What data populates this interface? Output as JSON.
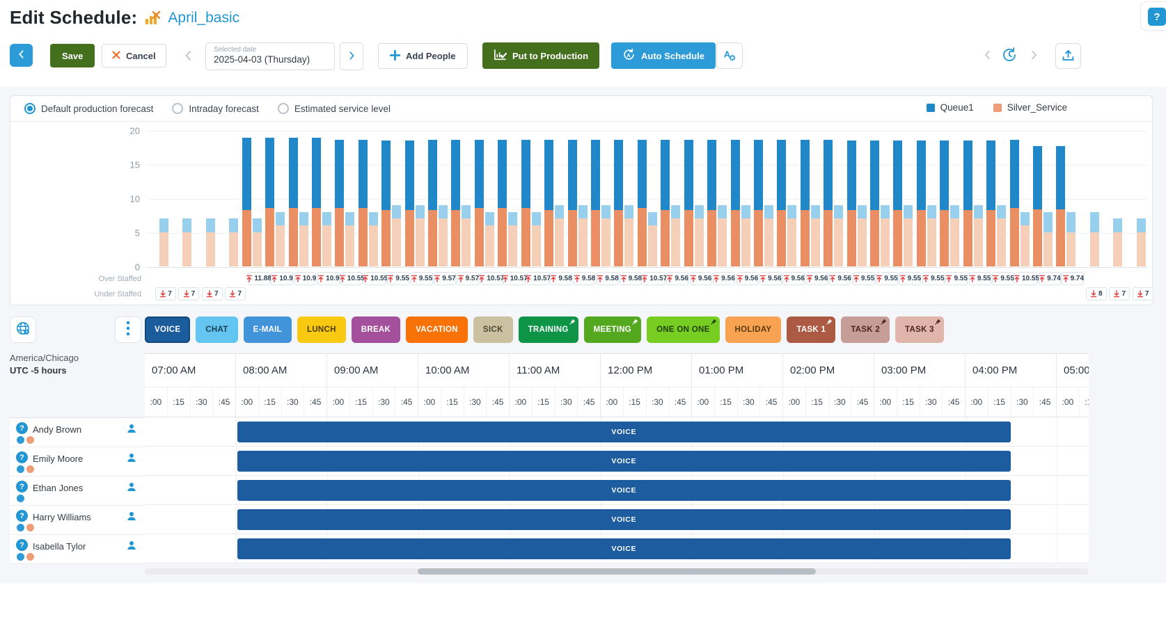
{
  "header": {
    "title": "Edit Schedule:",
    "schedule_name": "April_basic",
    "icons": [
      "schedule-chart-icon",
      "help-icon"
    ],
    "help_glyph": "?"
  },
  "toolbar": {
    "back_icon": "chevron-left-icon",
    "save": "Save",
    "cancel": "Cancel",
    "cancel_icon": "x-icon",
    "prev_date_icon": "chevron-left-icon",
    "selected_date_label": "Selected date",
    "selected_date": "2025-04-03 (Thursday)",
    "next_date_icon": "chevron-right-icon",
    "add_people": "Add People",
    "add_people_icon": "plus-icon",
    "put_to_production": "Put to Production",
    "put_to_production_icon": "chart-check-icon",
    "auto_schedule": "Auto Schedule",
    "auto_schedule_icon": "refresh-a-icon",
    "agent_settings_icon": "a-gear-icon",
    "history_prev_icon": "chevron-left-icon",
    "history_icon": "history-clock-icon",
    "history_next_icon": "chevron-right-icon",
    "export_icon": "upload-icon"
  },
  "forecast_options": [
    {
      "label": "Default production forecast",
      "selected": true
    },
    {
      "label": "Intraday forecast",
      "selected": false
    },
    {
      "label": "Estimated service level",
      "selected": false
    }
  ],
  "chart_data": {
    "type": "bar",
    "title": "Default production forecast",
    "ylim": [
      0,
      20
    ],
    "yticks": [
      0,
      5,
      10,
      15,
      20
    ],
    "grid": true,
    "legend_position": "top-right",
    "legend": [
      {
        "label": "Queue1",
        "color": "#2088c8"
      },
      {
        "label": "Silver_Service",
        "color": "#ef9d76"
      }
    ],
    "slot_minutes": 15,
    "start_time": "07:00 AM",
    "bars_note": "per 15-min slot: saturated stacked bar = forecast (Silver_Service bottom, Queue1 top); pale stacked bar = scheduled",
    "over_staffed_label": "Over Staffed",
    "under_staffed_label": "Under Staffed",
    "slots_columns": [
      "over_staffed",
      "under_staffed",
      "forecast_silver",
      "forecast_queue1",
      "scheduled_silver",
      "scheduled_queue1"
    ],
    "slots": [
      [
        null,
        7,
        0,
        0,
        5,
        2
      ],
      [
        null,
        7,
        0,
        0,
        5,
        2
      ],
      [
        null,
        7,
        0,
        0,
        5,
        2
      ],
      [
        null,
        7,
        0,
        0,
        5,
        2
      ],
      [
        11.88,
        null,
        8.3,
        10.6,
        5,
        2
      ],
      [
        10.9,
        null,
        8.6,
        10.3,
        6,
        2
      ],
      [
        10.9,
        null,
        8.6,
        10.3,
        6,
        2
      ],
      [
        10.9,
        null,
        8.6,
        10.3,
        6,
        2
      ],
      [
        10.55,
        null,
        8.6,
        10.0,
        6,
        2
      ],
      [
        10.55,
        null,
        8.6,
        10.0,
        6,
        2
      ],
      [
        9.55,
        null,
        8.3,
        10.2,
        7,
        2
      ],
      [
        9.55,
        null,
        8.3,
        10.2,
        7,
        2
      ],
      [
        9.57,
        null,
        8.3,
        10.3,
        7,
        2
      ],
      [
        9.57,
        null,
        8.3,
        10.3,
        7,
        2
      ],
      [
        10.57,
        null,
        8.6,
        10.0,
        6,
        2
      ],
      [
        10.57,
        null,
        8.6,
        10.0,
        6,
        2
      ],
      [
        10.57,
        null,
        8.6,
        10.0,
        6,
        2
      ],
      [
        9.58,
        null,
        8.3,
        10.3,
        7,
        2
      ],
      [
        9.58,
        null,
        8.3,
        10.3,
        7,
        2
      ],
      [
        9.58,
        null,
        8.3,
        10.3,
        7,
        2
      ],
      [
        9.58,
        null,
        8.3,
        10.3,
        7,
        2
      ],
      [
        10.57,
        null,
        8.6,
        10.0,
        6,
        2
      ],
      [
        9.56,
        null,
        8.3,
        10.3,
        7,
        2
      ],
      [
        9.56,
        null,
        8.3,
        10.3,
        7,
        2
      ],
      [
        9.56,
        null,
        8.3,
        10.3,
        7,
        2
      ],
      [
        9.56,
        null,
        8.3,
        10.3,
        7,
        2
      ],
      [
        9.56,
        null,
        8.3,
        10.3,
        7,
        2
      ],
      [
        9.56,
        null,
        8.3,
        10.3,
        7,
        2
      ],
      [
        9.56,
        null,
        8.3,
        10.3,
        7,
        2
      ],
      [
        9.56,
        null,
        8.3,
        10.3,
        7,
        2
      ],
      [
        9.55,
        null,
        8.3,
        10.2,
        7,
        2
      ],
      [
        9.55,
        null,
        8.3,
        10.2,
        7,
        2
      ],
      [
        9.55,
        null,
        8.3,
        10.2,
        7,
        2
      ],
      [
        9.55,
        null,
        8.3,
        10.2,
        7,
        2
      ],
      [
        9.55,
        null,
        8.3,
        10.2,
        7,
        2
      ],
      [
        9.55,
        null,
        8.3,
        10.2,
        7,
        2
      ],
      [
        9.55,
        null,
        8.3,
        10.2,
        7,
        2
      ],
      [
        10.55,
        null,
        8.6,
        10.0,
        6,
        2
      ],
      [
        9.74,
        null,
        8.4,
        9.3,
        5,
        3
      ],
      [
        9.74,
        null,
        8.4,
        9.3,
        5,
        3
      ],
      [
        null,
        8,
        0,
        0,
        5,
        3
      ],
      [
        null,
        7,
        0,
        0,
        5,
        2
      ],
      [
        null,
        7,
        0,
        0,
        5,
        2
      ]
    ],
    "colors": {
      "forecast_queue1": "#2088c8",
      "forecast_silver": "#e98f63",
      "scheduled_queue1": "#97cfec",
      "scheduled_silver": "#f6cfb8",
      "arrow_red": "#e23b3b"
    }
  },
  "activity_toolbar": {
    "globe_icon": "globe-clock-icon",
    "kebab_icon": "kebab-menu-icon",
    "pin_icon": "pushpin-icon",
    "activities": [
      {
        "label": "VOICE",
        "bg": "#1b5c9d",
        "fg": "#ffffff",
        "pinned": false,
        "selected": true
      },
      {
        "label": "CHAT",
        "bg": "#63c5f0",
        "fg": "#173c53",
        "pinned": false,
        "selected": false
      },
      {
        "label": "E-MAIL",
        "bg": "#4193da",
        "fg": "#ffffff",
        "pinned": false,
        "selected": false
      },
      {
        "label": "LUNCH",
        "bg": "#f9c912",
        "fg": "#4a3a05",
        "pinned": false,
        "selected": false
      },
      {
        "label": "BREAK",
        "bg": "#a4509c",
        "fg": "#ffffff",
        "pinned": false,
        "selected": false
      },
      {
        "label": "VACATION",
        "bg": "#f87207",
        "fg": "#ffffff",
        "pinned": false,
        "selected": false
      },
      {
        "label": "SICK",
        "bg": "#cbc1a1",
        "fg": "#4a452e",
        "pinned": false,
        "selected": false
      },
      {
        "label": "TRAINING",
        "bg": "#0e9447",
        "fg": "#ffffff",
        "pinned": true,
        "selected": false
      },
      {
        "label": "MEETING",
        "bg": "#54a820",
        "fg": "#ffffff",
        "pinned": true,
        "selected": false
      },
      {
        "label": "ONE ON ONE",
        "bg": "#77cd21",
        "fg": "#20400a",
        "pinned": true,
        "selected": false
      },
      {
        "label": "HOLIDAY",
        "bg": "#f8a352",
        "fg": "#5b3a10",
        "pinned": false,
        "selected": false
      },
      {
        "label": "TASK 1",
        "bg": "#ad5a45",
        "fg": "#ffffff",
        "pinned": true,
        "selected": false
      },
      {
        "label": "TASK 2",
        "bg": "#c79d97",
        "fg": "#4a241c",
        "pinned": true,
        "selected": false
      },
      {
        "label": "TASK 3",
        "bg": "#e0b5ac",
        "fg": "#4a241c",
        "pinned": true,
        "selected": false
      }
    ]
  },
  "timezone": {
    "region": "America/Chicago",
    "offset": "UTC -5 hours"
  },
  "schedule_grid": {
    "hours": [
      "07:00 AM",
      "08:00 AM",
      "09:00 AM",
      "10:00 AM",
      "11:00 AM",
      "12:00 PM",
      "01:00 PM",
      "02:00 PM",
      "03:00 PM",
      "04:00 PM",
      "05:00 PM"
    ],
    "quarters": [
      ":00",
      ":15",
      ":30",
      ":45"
    ],
    "employee_icons": [
      "help-circle-icon",
      "person-icon"
    ],
    "dot_colors": {
      "queue": "#2d9bd8",
      "silver": "#ef9d76"
    },
    "employees": [
      {
        "name": "Andy Brown",
        "dots": [
          "queue",
          "silver"
        ],
        "shift": {
          "label": "VOICE",
          "start": "08:00 AM",
          "end": "04:30 PM",
          "color": "#1d5c9e"
        }
      },
      {
        "name": "Emily Moore",
        "dots": [
          "queue",
          "silver"
        ],
        "shift": {
          "label": "VOICE",
          "start": "08:00 AM",
          "end": "04:30 PM",
          "color": "#1d5c9e"
        }
      },
      {
        "name": "Ethan Jones",
        "dots": [
          "queue"
        ],
        "shift": {
          "label": "VOICE",
          "start": "08:00 AM",
          "end": "04:30 PM",
          "color": "#1d5c9e"
        }
      },
      {
        "name": "Harry Williams",
        "dots": [
          "queue",
          "silver"
        ],
        "shift": {
          "label": "VOICE",
          "start": "08:00 AM",
          "end": "04:30 PM",
          "color": "#1d5c9e"
        }
      },
      {
        "name": "Isabella Tylor",
        "dots": [
          "queue",
          "silver"
        ],
        "shift": {
          "label": "VOICE",
          "start": "08:00 AM",
          "end": "04:30 PM",
          "color": "#1d5c9e"
        }
      }
    ]
  }
}
